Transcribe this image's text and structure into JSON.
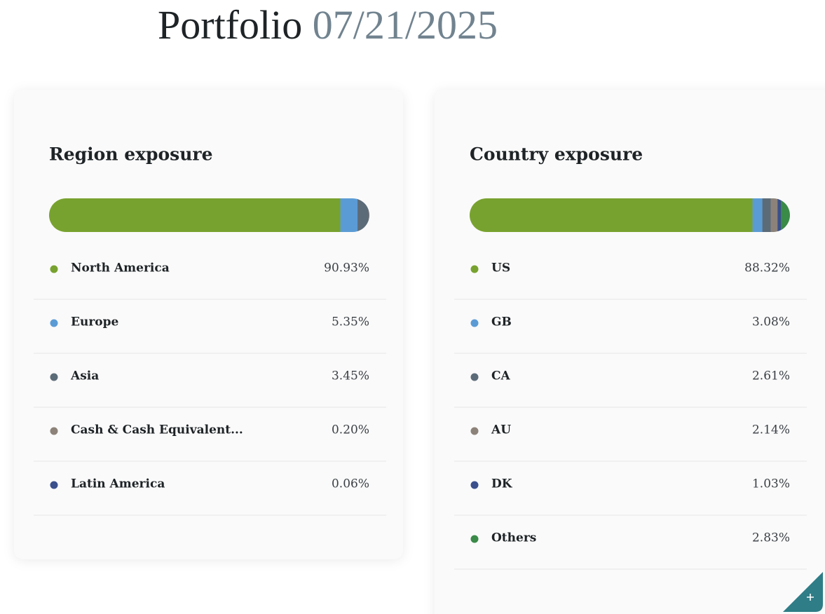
{
  "header": {
    "title": "Portfolio",
    "date": "07/21/2025"
  },
  "chart_data": [
    {
      "type": "stacked-bar",
      "title": "Region exposure",
      "categories": [
        "North America",
        "Europe",
        "Asia",
        "Cash & Cash Equivalent...",
        "Latin America"
      ],
      "values": [
        90.93,
        5.35,
        3.45,
        0.2,
        0.06
      ],
      "value_labels": [
        "90.93%",
        "5.35%",
        "3.45%",
        "0.20%",
        "0.06%"
      ],
      "colors": [
        "#78a22f",
        "#5b9bd5",
        "#5c6b78",
        "#8c8279",
        "#3a4f8c"
      ]
    },
    {
      "type": "stacked-bar",
      "title": "Country exposure",
      "categories": [
        "US",
        "GB",
        "CA",
        "AU",
        "DK",
        "Others"
      ],
      "values": [
        88.32,
        3.08,
        2.61,
        2.14,
        1.03,
        2.83
      ],
      "value_labels": [
        "88.32%",
        "3.08%",
        "2.61%",
        "2.14%",
        "1.03%",
        "2.83%"
      ],
      "colors": [
        "#78a22f",
        "#5b9bd5",
        "#5c6b78",
        "#8c8279",
        "#3a4f8c",
        "#3a8a48"
      ]
    }
  ]
}
